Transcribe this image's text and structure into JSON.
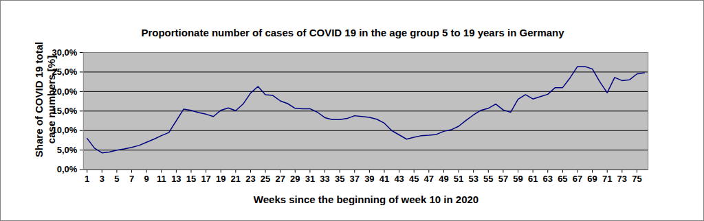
{
  "chart_data": {
    "type": "line",
    "title": "Proportionate number of cases of COVID 19 in the age group 5 to 19 years in Germany",
    "x_label": "Weeks since the beginning of week 10 in 2020",
    "y_label": "Share of COVID 19 total case numbers [%]",
    "x": [
      1,
      2,
      3,
      4,
      5,
      6,
      7,
      8,
      9,
      10,
      11,
      12,
      13,
      14,
      15,
      16,
      17,
      18,
      19,
      20,
      21,
      22,
      23,
      24,
      25,
      26,
      27,
      28,
      29,
      30,
      31,
      32,
      33,
      34,
      35,
      36,
      37,
      38,
      39,
      40,
      41,
      42,
      43,
      44,
      45,
      46,
      47,
      48,
      49,
      50,
      51,
      52,
      53,
      54,
      55,
      56,
      57,
      58,
      59,
      60,
      61,
      62,
      63,
      64,
      65,
      66,
      67,
      68,
      69,
      70,
      71,
      72,
      73,
      74,
      75,
      76
    ],
    "values": [
      8.0,
      5.5,
      4.3,
      4.5,
      5.0,
      5.3,
      5.7,
      6.2,
      7.0,
      7.8,
      8.7,
      9.5,
      12.5,
      15.5,
      15.2,
      14.6,
      14.2,
      13.6,
      15.2,
      15.8,
      15.1,
      16.8,
      19.6,
      21.3,
      19.2,
      19.0,
      17.6,
      16.9,
      15.7,
      15.6,
      15.6,
      14.7,
      13.3,
      12.8,
      12.8,
      13.1,
      13.8,
      13.6,
      13.4,
      12.9,
      11.9,
      10.0,
      8.9,
      7.8,
      8.3,
      8.7,
      8.8,
      9.0,
      9.8,
      10.2,
      11.1,
      12.6,
      14.0,
      15.2,
      15.7,
      16.8,
      15.3,
      14.7,
      18.0,
      19.2,
      18.1,
      18.7,
      19.3,
      21.0,
      21.0,
      23.5,
      26.4,
      26.4,
      25.8,
      22.5,
      19.7,
      23.6,
      22.8,
      23.0,
      24.5,
      24.8
    ],
    "color": "#000080",
    "xlim": [
      0.5,
      76.5
    ],
    "xticks": [
      1,
      3,
      5,
      7,
      9,
      11,
      13,
      15,
      17,
      19,
      21,
      23,
      25,
      27,
      29,
      31,
      33,
      35,
      37,
      39,
      41,
      43,
      45,
      47,
      49,
      51,
      53,
      55,
      57,
      59,
      61,
      63,
      65,
      67,
      69,
      71,
      73,
      75
    ],
    "ylim": [
      0,
      30
    ],
    "yticks": [
      {
        "value": 0,
        "label": "0,0%"
      },
      {
        "value": 5,
        "label": "5,0%"
      },
      {
        "value": 10,
        "label": "10,0%"
      },
      {
        "value": 15,
        "label": "15,0%"
      },
      {
        "value": 20,
        "label": "20,0%"
      },
      {
        "value": 25,
        "label": "25,0%"
      },
      {
        "value": 30,
        "label": "30,0%"
      }
    ],
    "grid": true
  }
}
